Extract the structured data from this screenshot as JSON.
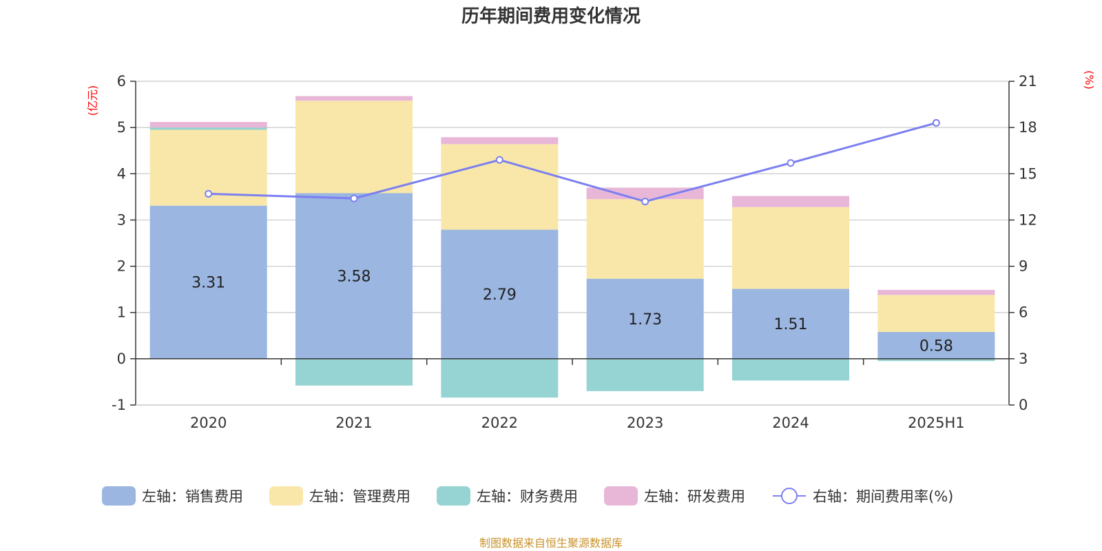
{
  "chart_data": {
    "type": "bar",
    "title": "历年期间费用变化情况",
    "categories": [
      "2020",
      "2021",
      "2022",
      "2023",
      "2024",
      "2025H1"
    ],
    "left_axis": {
      "unit": "(亿元)",
      "range": [
        -1,
        6
      ],
      "ticks": [
        "-1",
        "0",
        "1",
        "2",
        "3",
        "4",
        "5",
        "6"
      ]
    },
    "right_axis": {
      "unit": "(%)",
      "range": [
        0,
        21
      ],
      "ticks": [
        "0",
        "3",
        "6",
        "9",
        "12",
        "15",
        "18",
        "21"
      ]
    },
    "series": [
      {
        "name": "左轴：销售费用",
        "kind": "bar",
        "axis": "left",
        "color": "#9ab6e1",
        "values": [
          3.31,
          3.58,
          2.79,
          1.73,
          1.51,
          0.58
        ],
        "labels": [
          "3.31",
          "3.58",
          "2.79",
          "1.73",
          "1.51",
          "0.58"
        ]
      },
      {
        "name": "左轴：管理费用",
        "kind": "bar",
        "axis": "left",
        "color": "#f8e7a9",
        "values": [
          1.64,
          2.0,
          1.85,
          1.72,
          1.77,
          0.8
        ]
      },
      {
        "name": "左轴：财务费用",
        "kind": "bar",
        "axis": "left",
        "color": "#96d3d3",
        "values": [
          0.05,
          -0.58,
          -0.84,
          -0.7,
          -0.47,
          -0.05
        ]
      },
      {
        "name": "左轴：研发费用",
        "kind": "bar",
        "axis": "left",
        "color": "#e8b7d8",
        "values": [
          0.12,
          0.1,
          0.15,
          0.25,
          0.24,
          0.11
        ]
      },
      {
        "name": "右轴：期间费用率(%)",
        "kind": "line",
        "axis": "right",
        "color": "#7b7ff0",
        "values": [
          13.7,
          13.4,
          15.9,
          13.2,
          15.7,
          18.3
        ]
      }
    ],
    "grid": true,
    "legend_position": "bottom"
  },
  "source_note": "制图数据来自恒生聚源数据库"
}
